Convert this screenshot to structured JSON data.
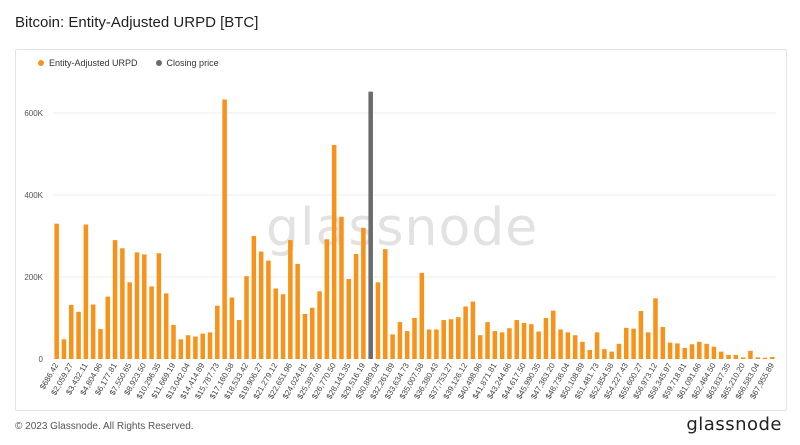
{
  "header": {
    "title": "Bitcoin: Entity-Adjusted URPD [BTC]"
  },
  "legend": {
    "items": [
      {
        "label": "Entity-Adjusted URPD",
        "color": "#f7931a"
      },
      {
        "label": "Closing price",
        "color": "#6b6b6b"
      }
    ]
  },
  "watermark": "glassnode",
  "footer": {
    "copyright": "© 2023 Glassnode. All Rights Reserved.",
    "brand": "glassnode"
  },
  "chart_data": {
    "type": "bar",
    "ylim": [
      0,
      700000
    ],
    "yticks": [
      {
        "value": 0,
        "label": "0"
      },
      {
        "value": 200000,
        "label": "200K"
      },
      {
        "value": 400000,
        "label": "400K"
      },
      {
        "value": 600000,
        "label": "600K"
      }
    ],
    "xtick_labels": [
      "$686.42",
      "$2,059.27",
      "$3,432.11",
      "$4,804.96",
      "$6,177.81",
      "$7,550.65",
      "$8,923.50",
      "$10,296.35",
      "$11,669.19",
      "$13,042.04",
      "$14,414.89",
      "$15,787.73",
      "$17,160.58",
      "$18,533.42",
      "$19,906.27",
      "$21,279.12",
      "$22,651.96",
      "$24,024.81",
      "$25,397.66",
      "$26,770.50",
      "$28,143.35",
      "$29,516.19",
      "$30,889.04",
      "$32,261.89",
      "$33,634.73",
      "$35,007.58",
      "$36,380.43",
      "$37,753.27",
      "$39,126.12",
      "$40,498.96",
      "$41,871.81",
      "$43,244.66",
      "$44,617.50",
      "$45,990.35",
      "$47,363.20",
      "$48,736.04",
      "$50,108.89",
      "$51,481.73",
      "$52,854.58",
      "$54,227.43",
      "$55,600.27",
      "$56,973.12",
      "$58,345.97",
      "$59,718.81",
      "$61,091.66",
      "$62,464.50",
      "$63,837.35",
      "$65,210.20",
      "$66,583.04",
      "$67,955.89"
    ],
    "values": [
      330000,
      48000,
      132000,
      115000,
      328000,
      133000,
      73000,
      152000,
      290000,
      270000,
      187000,
      260000,
      255000,
      177000,
      258000,
      160000,
      83000,
      48000,
      58000,
      55000,
      62000,
      65000,
      130000,
      633000,
      150000,
      95000,
      202000,
      300000,
      262000,
      240000,
      172000,
      158000,
      290000,
      232000,
      110000,
      125000,
      165000,
      292000,
      522000,
      347000,
      195000,
      256000,
      320000,
      0,
      187000,
      268000,
      60000,
      90000,
      68000,
      100000,
      210000,
      72000,
      72000,
      95000,
      97000,
      102000,
      128000,
      140000,
      58000,
      90000,
      68000,
      65000,
      75000,
      95000,
      88000,
      85000,
      67000,
      100000,
      118000,
      72000,
      65000,
      58000,
      42000,
      22000,
      65000,
      24000,
      18000,
      37000,
      76000,
      74000,
      117000,
      65000,
      148000,
      78000,
      40000,
      38000,
      27000,
      36000,
      42000,
      37000,
      30000,
      18000,
      10000,
      10000,
      4000,
      20000,
      4000,
      3000,
      5000
    ],
    "closing_price_index": 43,
    "closing_price_value": 652000,
    "closing_price_label": "Closing price",
    "series": [
      {
        "name": "Entity-Adjusted URPD",
        "color": "#f7931a"
      },
      {
        "name": "Closing price",
        "color": "#6b6b6b"
      }
    ],
    "grid": true
  }
}
